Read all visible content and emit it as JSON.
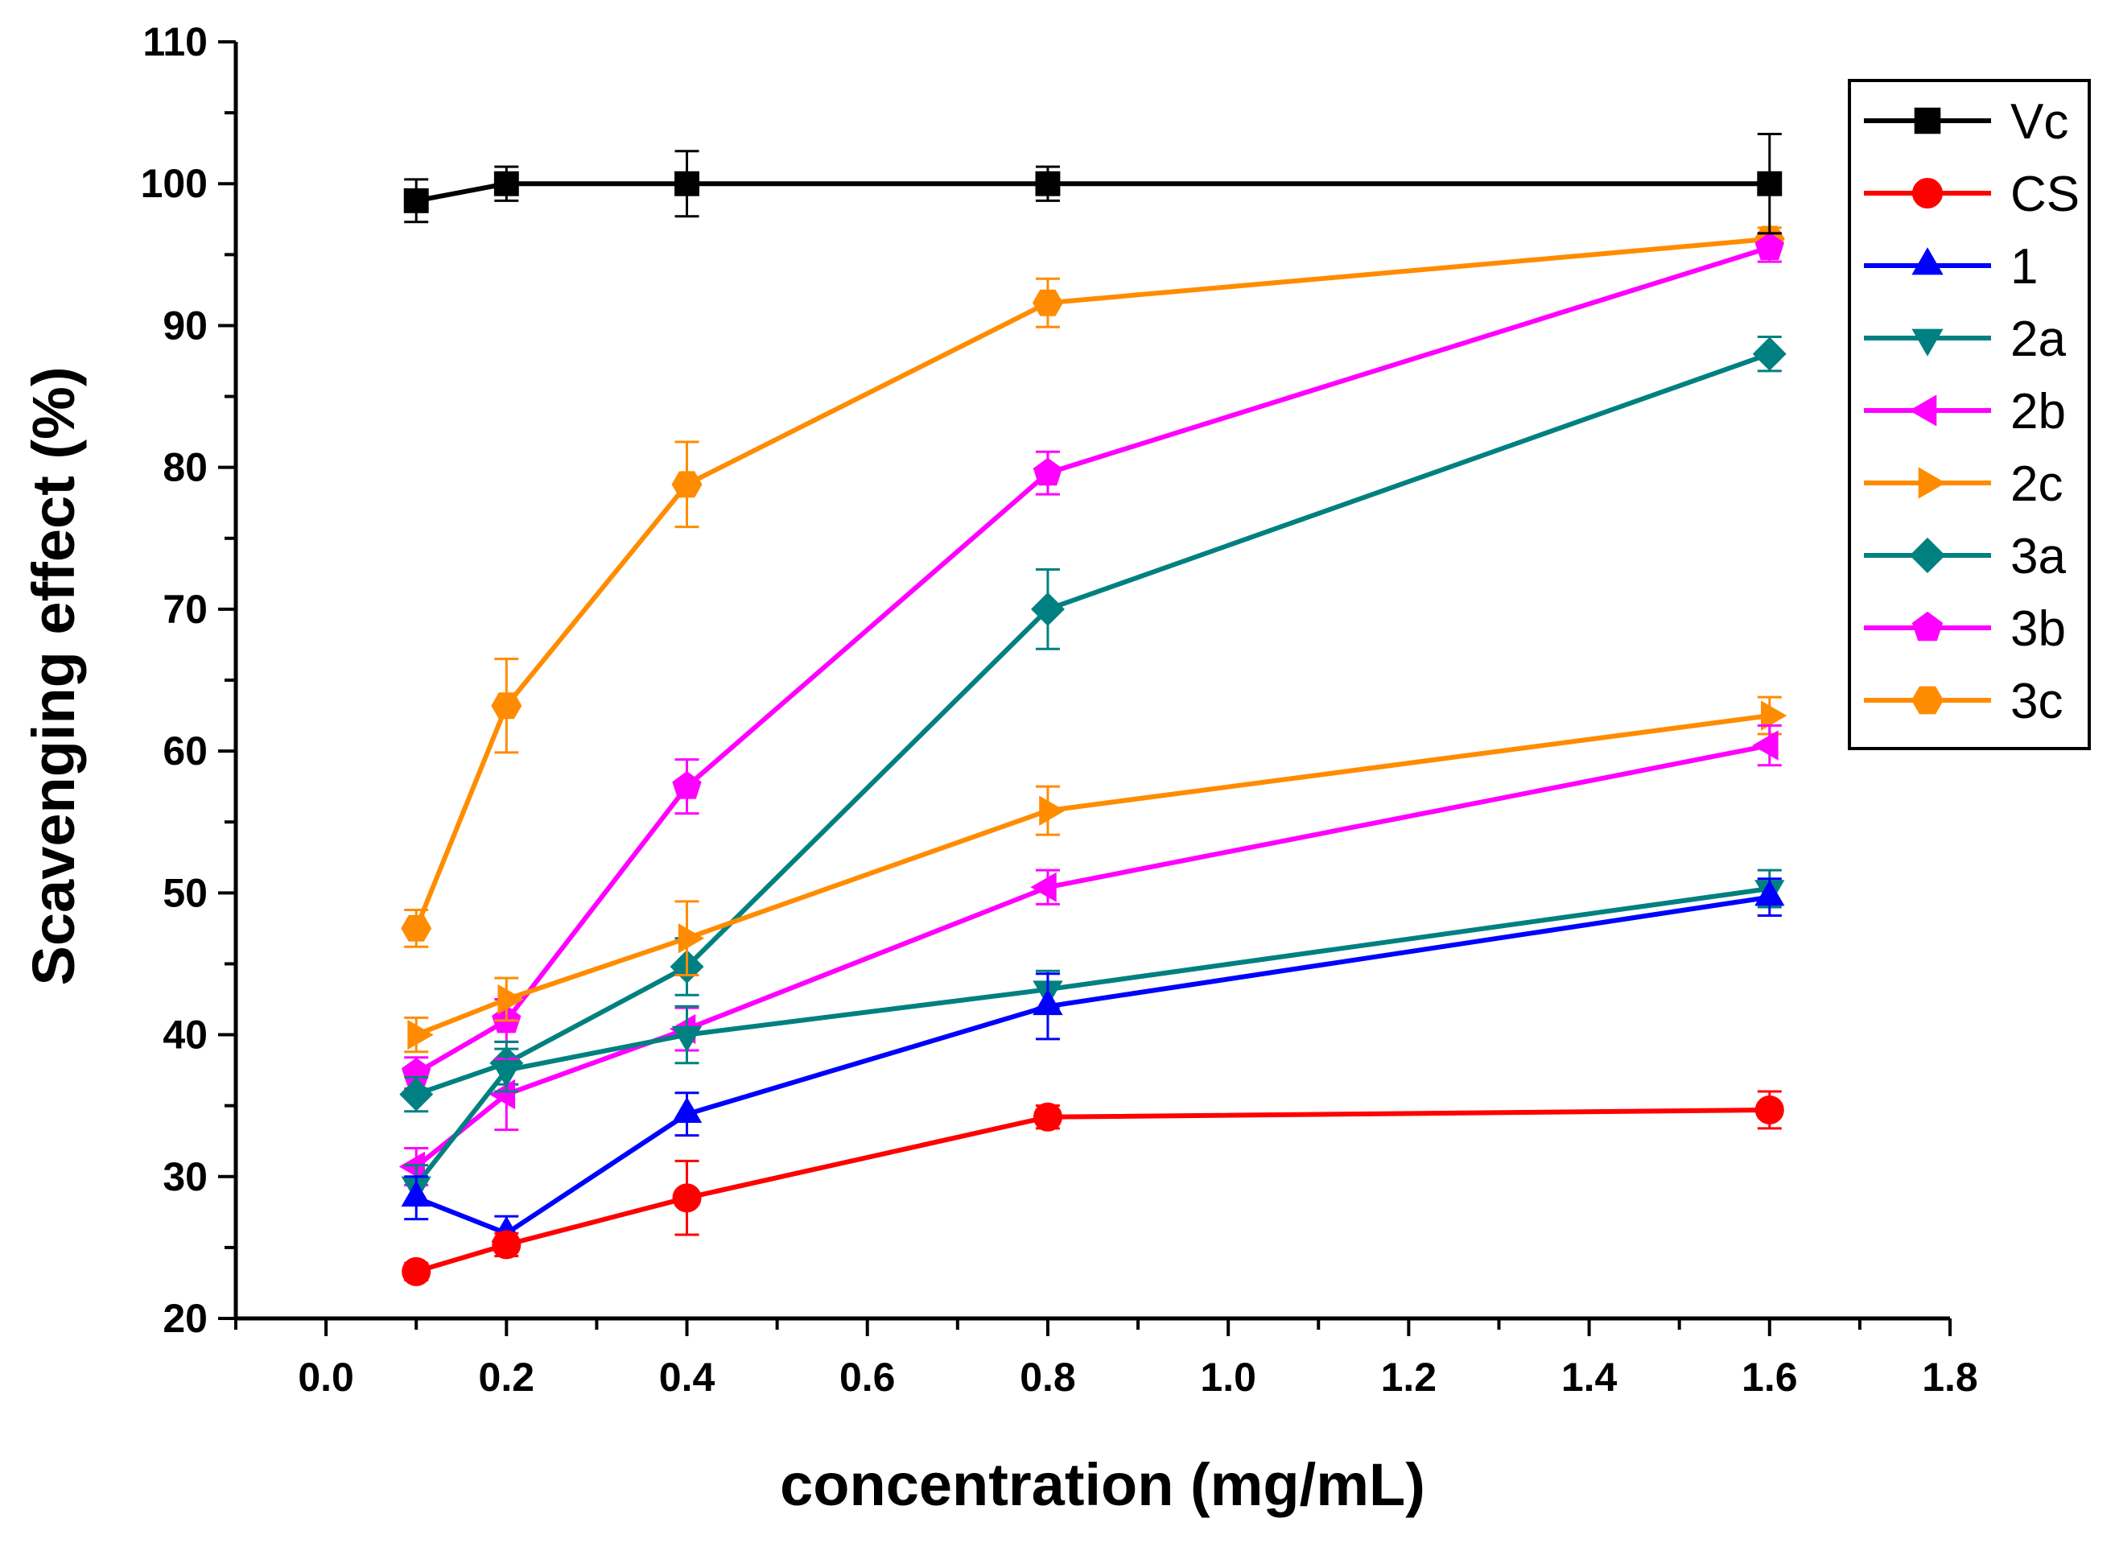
{
  "chart_data": {
    "type": "line",
    "title": "",
    "xlabel": "concentration (mg/mL)",
    "ylabel": "Scavenging effect (%)",
    "xlim": [
      -0.1,
      1.8
    ],
    "ylim": [
      20,
      110
    ],
    "xticks": [
      "0.0",
      "0.2",
      "0.4",
      "0.6",
      "0.8",
      "1.0",
      "1.2",
      "1.4",
      "1.6",
      "1.8"
    ],
    "yticks": [
      "20",
      "30",
      "40",
      "50",
      "60",
      "70",
      "80",
      "90",
      "100",
      "110"
    ],
    "x": [
      0.1,
      0.2,
      0.4,
      0.8,
      1.6
    ],
    "legend_position": "top-right",
    "grid": false,
    "series": [
      {
        "name": "Vc",
        "color": "#000000",
        "marker": "square",
        "values": [
          98.8,
          100.0,
          100.0,
          100.0,
          100.0
        ],
        "errors": [
          1.5,
          1.2,
          2.3,
          1.2,
          3.5
        ]
      },
      {
        "name": "CS",
        "color": "#ff0000",
        "marker": "circle",
        "values": [
          23.3,
          25.2,
          28.5,
          34.2,
          34.7
        ],
        "errors": [
          0.6,
          0.8,
          2.6,
          0.8,
          1.3
        ]
      },
      {
        "name": "1",
        "color": "#0000ff",
        "marker": "triangle-up",
        "values": [
          28.5,
          26.0,
          34.4,
          42.0,
          49.7
        ],
        "errors": [
          1.5,
          1.2,
          1.5,
          2.3,
          1.3
        ]
      },
      {
        "name": "2a",
        "color": "#008080",
        "marker": "triangle-down",
        "values": [
          29.4,
          37.5,
          40.0,
          43.2,
          50.3
        ],
        "errors": [
          1.4,
          1.5,
          2.0,
          1.3,
          1.3
        ]
      },
      {
        "name": "2b",
        "color": "#ff00ff",
        "marker": "triangle-left",
        "values": [
          30.7,
          35.8,
          40.4,
          50.4,
          60.4
        ],
        "errors": [
          1.3,
          2.5,
          1.5,
          1.2,
          1.4
        ]
      },
      {
        "name": "2c",
        "color": "#ff8c00",
        "marker": "triangle-right",
        "values": [
          40.0,
          42.5,
          46.8,
          55.8,
          62.5
        ],
        "errors": [
          1.2,
          1.5,
          2.6,
          1.7,
          1.3
        ]
      },
      {
        "name": "3a",
        "color": "#008080",
        "marker": "diamond",
        "values": [
          35.8,
          38.0,
          44.8,
          70.0,
          88.0
        ],
        "errors": [
          1.2,
          1.5,
          2.0,
          2.8,
          1.2
        ]
      },
      {
        "name": "3b",
        "color": "#ff00ff",
        "marker": "pentagon",
        "values": [
          37.3,
          41.0,
          57.5,
          79.6,
          95.5
        ],
        "errors": [
          1.1,
          1.5,
          1.9,
          1.5,
          1.0
        ]
      },
      {
        "name": "3c",
        "color": "#ff8c00",
        "marker": "hexagon",
        "values": [
          47.5,
          63.2,
          78.8,
          91.6,
          96.1
        ],
        "errors": [
          1.3,
          3.3,
          3.0,
          1.7,
          0.8
        ]
      }
    ]
  }
}
